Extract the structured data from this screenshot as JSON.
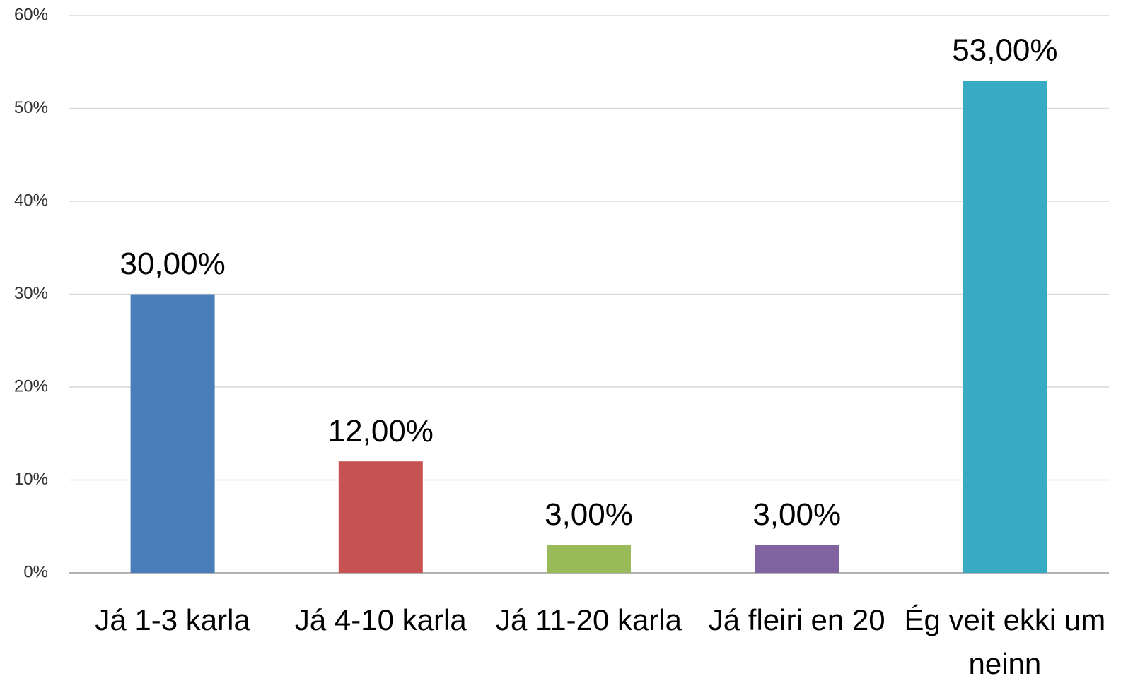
{
  "chart_data": {
    "type": "bar",
    "categories": [
      "Já 1-3 karla",
      "Já 4-10 karla",
      "Já 11-20 karla",
      "Já fleiri en 20",
      "Ég veit ekki um neinn"
    ],
    "values": [
      30,
      12,
      3,
      3,
      53
    ],
    "value_labels": [
      "30,00%",
      "12,00%",
      "3,00%",
      "3,00%",
      "53,00%"
    ],
    "colors": [
      "#4a7eba",
      "#c75252",
      "#9aba5a",
      "#8064a2",
      "#37aac4"
    ],
    "ylim": [
      0,
      60
    ],
    "yticks": [
      {
        "value": 0,
        "label": "0%"
      },
      {
        "value": 10,
        "label": "10%"
      },
      {
        "value": 20,
        "label": "20%"
      },
      {
        "value": 30,
        "label": "30%"
      },
      {
        "value": 40,
        "label": "40%"
      },
      {
        "value": 50,
        "label": "50%"
      },
      {
        "value": 60,
        "label": "60%"
      }
    ],
    "grid": true
  }
}
